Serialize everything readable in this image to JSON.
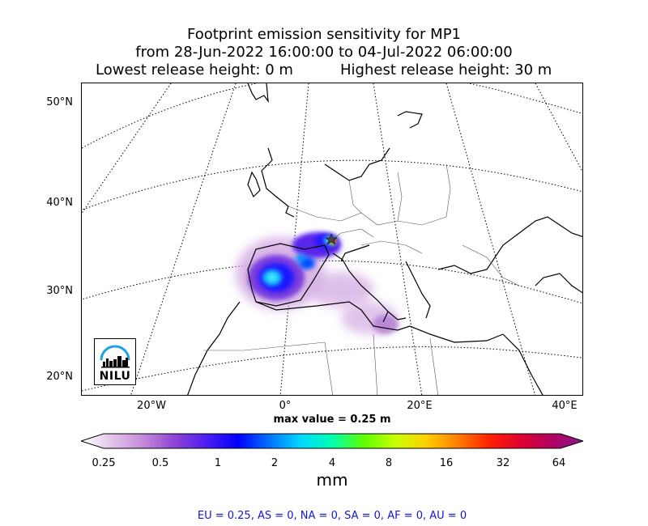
{
  "title": {
    "line1": "Footprint emission sensitivity for MP1",
    "line2": "from 28-Jun-2022 16:00:00 to 04-Jul-2022 06:00:00",
    "lowest": "Lowest release height: 0 m",
    "highest": "Highest release height: 30 m"
  },
  "map": {
    "lat_labels": [
      "50°N",
      "40°N",
      "30°N",
      "20°N"
    ],
    "lon_labels": [
      "20°W",
      "0°",
      "20°E",
      "40°E"
    ],
    "max_value": "max value = 0.25 m",
    "logo_text": "NILU",
    "logo_icon": "nilu-logo-icon",
    "receptor_marker": "star-icon"
  },
  "colorbar": {
    "ticks": [
      "0.25",
      "0.5",
      "1",
      "2",
      "4",
      "8",
      "16",
      "32",
      "64"
    ],
    "unit": "mm",
    "colors": [
      "#ffffff",
      "#e3c3ea",
      "#c38ad9",
      "#8f42d6",
      "#4b1ef0",
      "#0000ff",
      "#0072ff",
      "#00d8ff",
      "#00ffb0",
      "#5dff00",
      "#c8ff00",
      "#ffd000",
      "#ff8000",
      "#ff2000",
      "#e00030",
      "#b00060",
      "#8a1a8a"
    ]
  },
  "footer": "EU = 0.25,  AS = 0,  NA = 0,  SA = 0,  AF = 0,  AU = 0"
}
